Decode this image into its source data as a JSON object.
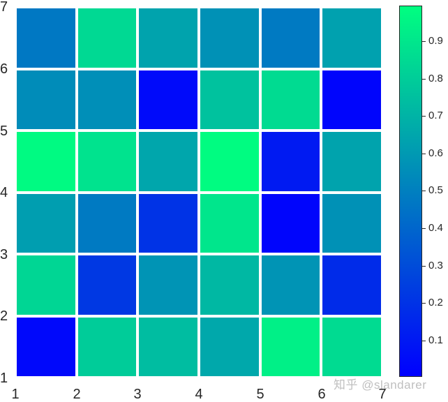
{
  "chart_data": {
    "type": "heatmap",
    "title": "",
    "xlabel": "",
    "ylabel": "",
    "xlim": [
      1,
      7
    ],
    "ylim": [
      1,
      7
    ],
    "x_ticks": [
      "1",
      "2",
      "3",
      "4",
      "5",
      "6",
      "7"
    ],
    "y_ticks": [
      "1",
      "2",
      "3",
      "4",
      "5",
      "6",
      "7"
    ],
    "grid": false,
    "colormap": "winter",
    "colormap_stops": [
      "#0000FF",
      "#00FF80"
    ],
    "clim": [
      0.0,
      1.0
    ],
    "colorbar": {
      "position": "right",
      "ticks": [
        "0.1",
        "0.2",
        "0.3",
        "0.4",
        "0.5",
        "0.6",
        "0.7",
        "0.8",
        "0.9"
      ]
    },
    "rows_top_to_bottom_y_ranges": [
      "6-7",
      "5-6",
      "4-5",
      "3-4",
      "2-3",
      "1-2"
    ],
    "cols_x_ranges": [
      "1-2",
      "2-3",
      "3-4",
      "4-5",
      "5-6",
      "6-7"
    ],
    "values": [
      [
        0.47,
        0.85,
        0.64,
        0.57,
        0.48,
        0.63
      ],
      [
        0.55,
        0.56,
        0.04,
        0.76,
        0.86,
        0.02
      ],
      [
        0.98,
        0.89,
        0.65,
        0.99,
        0.1,
        0.64
      ],
      [
        0.62,
        0.48,
        0.2,
        0.9,
        0.02,
        0.57
      ],
      [
        0.84,
        0.22,
        0.58,
        0.72,
        0.58,
        0.17
      ],
      [
        0.03,
        0.8,
        0.74,
        0.66,
        0.94,
        0.86
      ]
    ]
  },
  "plot": {
    "y_tick_labels": [
      "7",
      "6",
      "5",
      "4",
      "3",
      "2",
      "1"
    ],
    "x_tick_labels": [
      "1",
      "2",
      "3",
      "4",
      "5",
      "6",
      "7"
    ]
  },
  "colorbar": {
    "tick_labels": [
      "0.9",
      "0.8",
      "0.7",
      "0.6",
      "0.5",
      "0.4",
      "0.3",
      "0.2",
      "0.1"
    ]
  },
  "watermark": "知乎 @slandarer"
}
